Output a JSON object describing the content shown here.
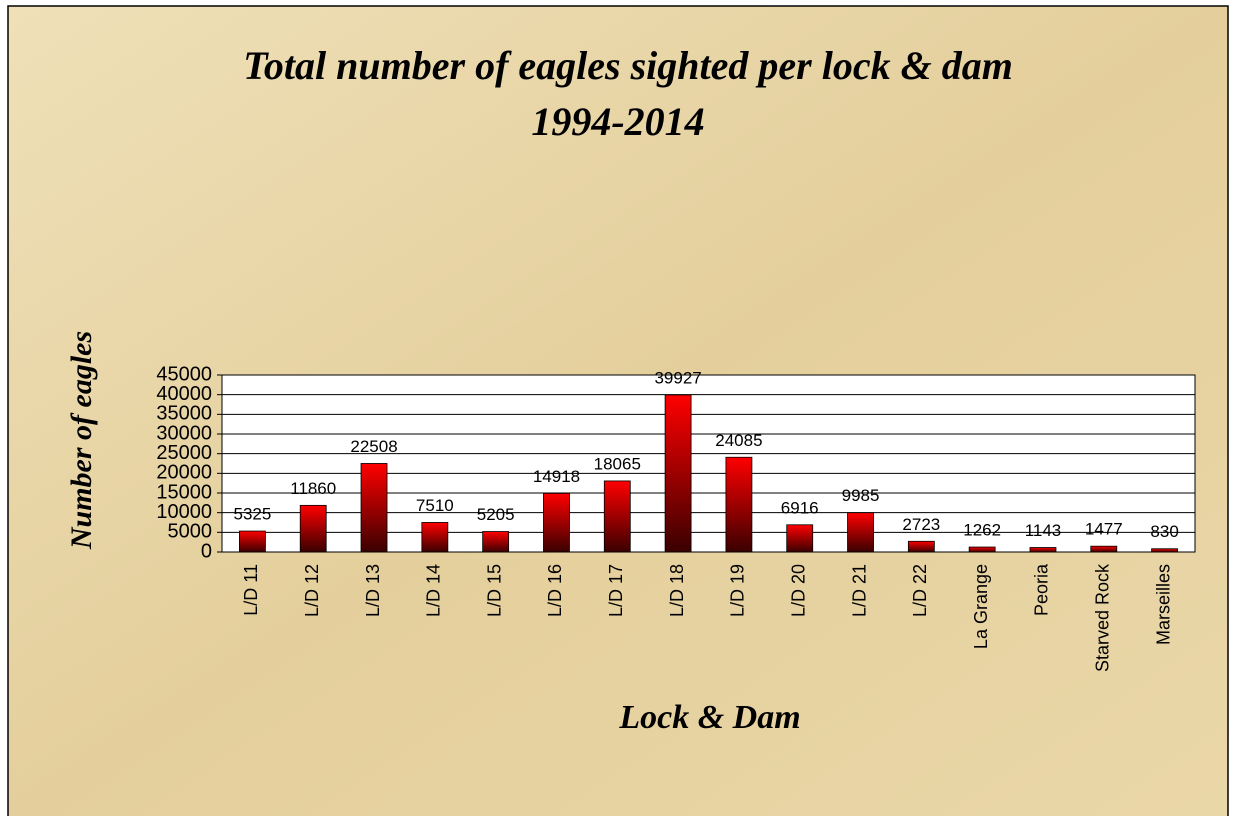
{
  "chart_data": {
    "type": "bar",
    "title": "Total number of eagles sighted per lock & dam",
    "subtitle": "1994-2014",
    "x_label": "Lock & Dam",
    "y_label": "Number of eagles",
    "categories": [
      "L/D 11",
      "L/D 12",
      "L/D 13",
      "L/D 14",
      "L/D 15",
      "L/D 16",
      "L/D 17",
      "L/D 18",
      "L/D 19",
      "L/D 20",
      "L/D 21",
      "L/D 22",
      "La Grange",
      "Peoria",
      "Starved Rock",
      "Marseilles"
    ],
    "values": [
      5325,
      11860,
      22508,
      7510,
      5205,
      14918,
      18065,
      39927,
      24085,
      6916,
      9985,
      2723,
      1262,
      1143,
      1477,
      830
    ],
    "color": "#ff0000",
    "ylim": [
      0,
      45000
    ],
    "yticks": [
      0,
      5000,
      10000,
      15000,
      20000,
      25000,
      30000,
      35000,
      40000,
      45000
    ],
    "grid": true
  }
}
